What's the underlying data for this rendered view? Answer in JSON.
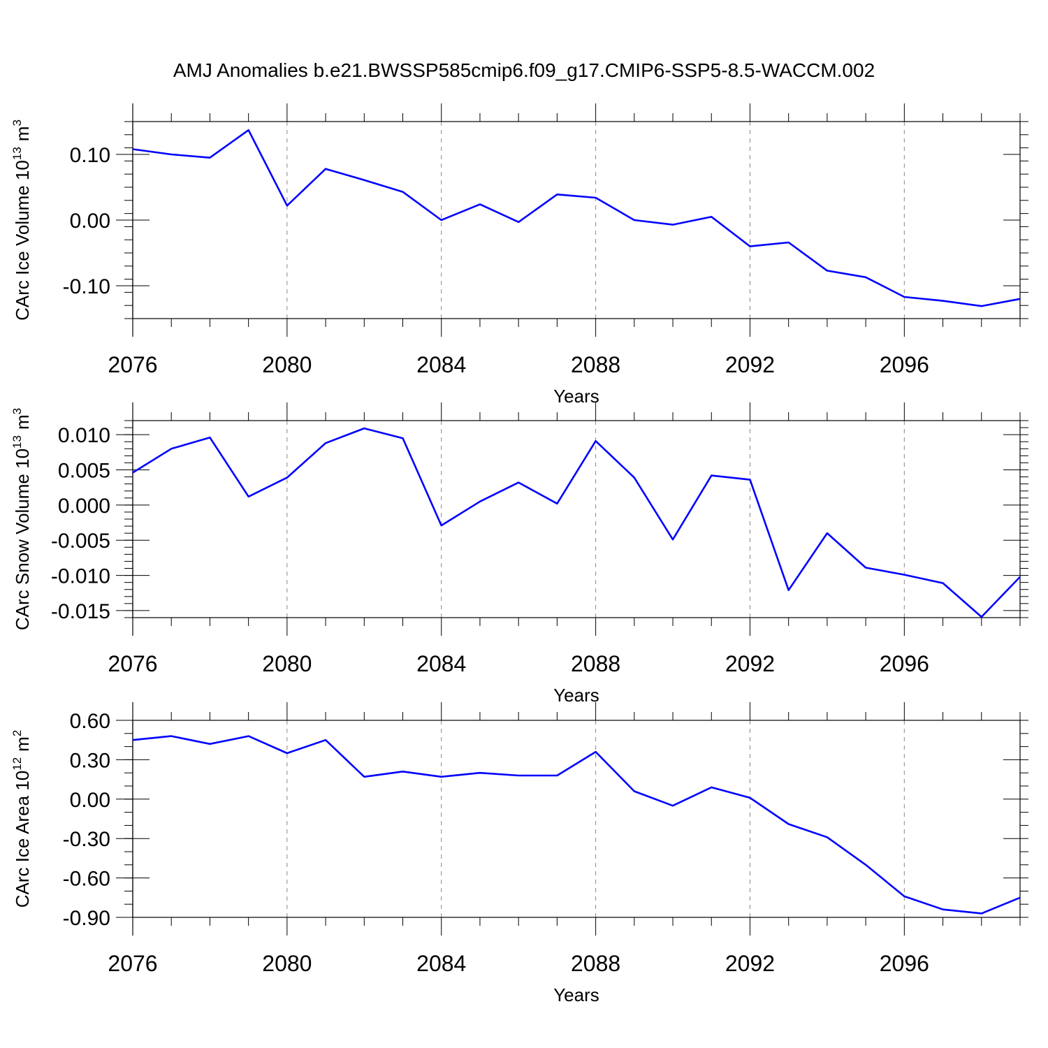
{
  "title": "AMJ Anomalies b.e21.BWSSP585cmip6.f09_g17.CMIP6-SSP5-8.5-WACCM.002",
  "line_color": "#0000ff",
  "grid_color": "#888888",
  "chart_data": [
    {
      "type": "line",
      "ylabel": "CArc Ice Volume 10",
      "ylabel_exp": "13",
      "ylabel_unit": "m",
      "ylabel_unit_exp": "3",
      "xlabel": "Years",
      "xlim": [
        2076,
        2099
      ],
      "ylim": [
        -0.15,
        0.15
      ],
      "x_ticks": [
        2076,
        2080,
        2084,
        2088,
        2092,
        2096
      ],
      "x_tick_labels": [
        "2076",
        "2080",
        "2084",
        "2088",
        "2092",
        "2096"
      ],
      "y_ticks": [
        -0.1,
        0.0,
        0.1
      ],
      "y_tick_labels": [
        "-0.10",
        "0.00",
        "0.10"
      ],
      "y_minor_step": 0.02,
      "grid": "vertical-dashed",
      "x": [
        2076,
        2077,
        2078,
        2079,
        2080,
        2081,
        2082,
        2083,
        2084,
        2085,
        2086,
        2087,
        2088,
        2089,
        2090,
        2091,
        2092,
        2093,
        2094,
        2095,
        2096,
        2097,
        2098,
        2099
      ],
      "values": [
        0.108,
        0.1,
        0.095,
        0.137,
        0.022,
        0.078,
        0.061,
        0.043,
        0.0,
        0.024,
        -0.003,
        0.039,
        0.034,
        0.0,
        -0.007,
        0.005,
        -0.04,
        -0.034,
        -0.077,
        -0.087,
        -0.117,
        -0.123,
        -0.131,
        -0.12
      ]
    },
    {
      "type": "line",
      "ylabel": "CArc Snow Volume 10",
      "ylabel_exp": "13",
      "ylabel_unit": "m",
      "ylabel_unit_exp": "3",
      "xlabel": "Years",
      "xlim": [
        2076,
        2099
      ],
      "ylim": [
        -0.016,
        0.012
      ],
      "x_ticks": [
        2076,
        2080,
        2084,
        2088,
        2092,
        2096
      ],
      "x_tick_labels": [
        "2076",
        "2080",
        "2084",
        "2088",
        "2092",
        "2096"
      ],
      "y_ticks": [
        -0.015,
        -0.01,
        -0.005,
        0.0,
        0.005,
        0.01
      ],
      "y_tick_labels": [
        "-0.015",
        "-0.010",
        "-0.005",
        "0.000",
        "0.005",
        "0.010"
      ],
      "y_minor_step": 0.001,
      "grid": "vertical-dashed",
      "x": [
        2076,
        2077,
        2078,
        2079,
        2080,
        2081,
        2082,
        2083,
        2084,
        2085,
        2086,
        2087,
        2088,
        2089,
        2090,
        2091,
        2092,
        2093,
        2094,
        2095,
        2096,
        2097,
        2098,
        2099
      ],
      "values": [
        0.0046,
        0.008,
        0.0096,
        0.0012,
        0.0039,
        0.0088,
        0.0109,
        0.0095,
        -0.0029,
        0.0005,
        0.0032,
        0.0002,
        0.0091,
        0.0039,
        -0.0049,
        0.0042,
        0.0036,
        -0.0121,
        -0.004,
        -0.0089,
        -0.0099,
        -0.0111,
        -0.0159,
        -0.0102
      ]
    },
    {
      "type": "line",
      "ylabel": "CArc Ice Area 10",
      "ylabel_exp": "12",
      "ylabel_unit": "m",
      "ylabel_unit_exp": "2",
      "xlabel": "Years",
      "xlim": [
        2076,
        2099
      ],
      "ylim": [
        -0.9,
        0.6
      ],
      "x_ticks": [
        2076,
        2080,
        2084,
        2088,
        2092,
        2096
      ],
      "x_tick_labels": [
        "2076",
        "2080",
        "2084",
        "2088",
        "2092",
        "2096"
      ],
      "y_ticks": [
        -0.9,
        -0.6,
        -0.3,
        0.0,
        0.3,
        0.6
      ],
      "y_tick_labels": [
        "-0.90",
        "-0.60",
        "-0.30",
        "0.00",
        "0.30",
        "0.60"
      ],
      "y_minor_step": 0.1,
      "grid": "vertical-dashed",
      "x": [
        2076,
        2077,
        2078,
        2079,
        2080,
        2081,
        2082,
        2083,
        2084,
        2085,
        2086,
        2087,
        2088,
        2089,
        2090,
        2091,
        2092,
        2093,
        2094,
        2095,
        2096,
        2097,
        2098,
        2099
      ],
      "values": [
        0.45,
        0.48,
        0.42,
        0.48,
        0.35,
        0.45,
        0.17,
        0.21,
        0.17,
        0.2,
        0.18,
        0.18,
        0.36,
        0.06,
        -0.05,
        0.09,
        0.01,
        -0.19,
        -0.29,
        -0.5,
        -0.74,
        -0.84,
        -0.87,
        -0.75
      ]
    }
  ]
}
